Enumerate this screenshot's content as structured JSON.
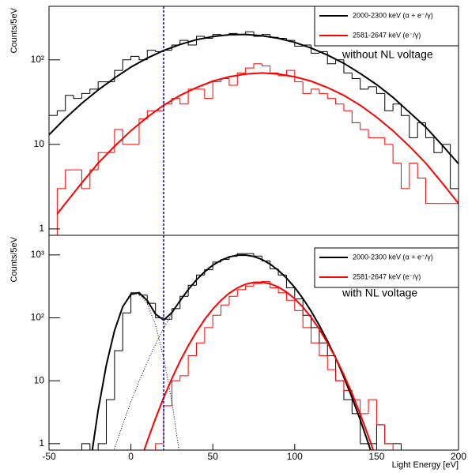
{
  "chart_data": [
    {
      "type": "histogram",
      "scale": "log",
      "ylabel": "Counts/5eV",
      "annotation": "without NL voltage",
      "legend": "top-right",
      "xlim": [
        -50,
        200
      ],
      "ylim": [
        0.84,
        430
      ],
      "yticks": [
        1,
        10,
        {
          "value": 100,
          "label": "10²"
        }
      ],
      "vline": {
        "x": 20,
        "color": "#0000cc"
      },
      "bins": [
        -50,
        -45,
        -40,
        -35,
        -30,
        -25,
        -20,
        -15,
        -10,
        -5,
        0,
        5,
        10,
        15,
        20,
        25,
        30,
        35,
        40,
        45,
        50,
        55,
        60,
        65,
        70,
        75,
        80,
        85,
        90,
        95,
        100,
        105,
        110,
        115,
        120,
        125,
        130,
        135,
        140,
        145,
        150,
        155,
        160,
        165,
        170,
        175,
        180,
        185,
        190,
        195,
        200
      ],
      "series": [
        {
          "name": "2000-2300 keV (α + e⁻/γ)",
          "color": "#000000",
          "values": [
            22,
            25,
            38,
            35,
            40,
            45,
            55,
            55,
            75,
            100,
            110,
            100,
            130,
            125,
            130,
            150,
            170,
            150,
            190,
            180,
            200,
            195,
            205,
            200,
            215,
            190,
            200,
            185,
            180,
            170,
            145,
            150,
            120,
            125,
            90,
            100,
            70,
            60,
            45,
            48,
            40,
            25,
            30,
            22,
            12,
            18,
            12,
            8,
            10,
            3
          ]
        },
        {
          "name": "2581-2647 keV (e⁻/γ)",
          "color": "#ff0000",
          "values": [
            0,
            3,
            5,
            5,
            3,
            5,
            8,
            8,
            15,
            10,
            10,
            20,
            25,
            25,
            30,
            35,
            30,
            45,
            45,
            35,
            55,
            60,
            50,
            70,
            80,
            90,
            85,
            70,
            65,
            75,
            55,
            40,
            45,
            40,
            35,
            30,
            25,
            18,
            15,
            12,
            12,
            10,
            6,
            3,
            6,
            4,
            2,
            2,
            2,
            2
          ]
        }
      ],
      "fits": [
        {
          "color": "#000000",
          "dashed": false,
          "x": [
            -50,
            -40,
            -30,
            -20,
            -10,
            0,
            10,
            20,
            30,
            40,
            50,
            60,
            70,
            80,
            90,
            100,
            110,
            120,
            130,
            140,
            150,
            160,
            170,
            180,
            190,
            200
          ],
          "values": [
            13,
            20.4,
            30.6,
            44,
            61,
            82,
            105,
            129,
            152,
            173,
            189,
            198,
            200,
            193,
            180,
            161,
            138,
            114,
            91,
            69,
            51,
            36,
            24,
            16,
            9.8,
            5.9
          ]
        },
        {
          "color": "#ff0000",
          "dashed": false,
          "x": [
            -45,
            -40,
            -30,
            -20,
            -10,
            0,
            10,
            20,
            30,
            40,
            50,
            60,
            70,
            80,
            90,
            100,
            110,
            120,
            130,
            140,
            150,
            160,
            170,
            180,
            190,
            200
          ],
          "values": [
            1.5,
            2.0,
            3.5,
            6.0,
            9.5,
            14.5,
            21,
            29,
            38,
            47,
            56,
            63,
            68,
            70,
            68,
            63,
            56,
            47,
            38,
            29,
            21,
            14.5,
            9.5,
            6.0,
            3.5,
            2.0
          ]
        }
      ]
    },
    {
      "type": "histogram",
      "scale": "log",
      "ylabel": "Counts/5eV",
      "xlabel": "Light Energy [eV]",
      "annotation": "with NL voltage",
      "legend": "top-right",
      "xlim": [
        -50,
        200
      ],
      "ylim": [
        0.79,
        2050
      ],
      "xticks": [
        -50,
        0,
        50,
        100,
        150,
        200
      ],
      "yticks": [
        1,
        10,
        {
          "value": 100,
          "label": "10²"
        },
        {
          "value": 1000,
          "label": "10³"
        }
      ],
      "vline": {
        "x": 20,
        "color": "#0000cc"
      },
      "bins": [
        -50,
        -45,
        -40,
        -35,
        -30,
        -25,
        -20,
        -15,
        -10,
        -5,
        0,
        5,
        10,
        15,
        20,
        25,
        30,
        35,
        40,
        45,
        50,
        55,
        60,
        65,
        70,
        75,
        80,
        85,
        90,
        95,
        100,
        105,
        110,
        115,
        120,
        125,
        130,
        135,
        140,
        145,
        150,
        155,
        160,
        165,
        170,
        175,
        180,
        185,
        190,
        195,
        200
      ],
      "series": [
        {
          "name": "2000-2300 keV (α + e⁻/γ)",
          "color": "#000000",
          "values": [
            0,
            0,
            0,
            0,
            1,
            0,
            1,
            5,
            30,
            120,
            250,
            230,
            170,
            100,
            95,
            140,
            220,
            330,
            480,
            580,
            770,
            850,
            950,
            1050,
            1050,
            960,
            800,
            600,
            480,
            300,
            200,
            110,
            70,
            40,
            25,
            10,
            5,
            3,
            1,
            1,
            2,
            1,
            1,
            0,
            0,
            0,
            0,
            0,
            0,
            0
          ]
        },
        {
          "name": "2581-2647 keV (e⁻/γ)",
          "color": "#ff0000",
          "values": [
            0,
            0,
            0,
            0,
            0,
            0,
            0,
            0,
            0,
            0,
            0,
            0,
            0,
            1,
            4,
            10,
            12,
            25,
            40,
            70,
            110,
            160,
            220,
            280,
            320,
            350,
            380,
            300,
            250,
            190,
            130,
            70,
            40,
            25,
            15,
            10,
            7,
            5,
            3,
            5,
            2,
            1,
            0,
            0,
            0,
            0,
            0,
            0,
            0,
            0
          ]
        }
      ],
      "fits": [
        {
          "color": "#000000",
          "dashed": false,
          "x": [
            -25,
            -20,
            -15,
            -10,
            -5,
            0,
            5,
            10,
            15,
            20,
            25,
            30,
            35,
            40,
            45,
            50,
            55,
            60,
            65,
            70,
            75,
            80,
            85,
            90,
            95,
            100,
            105,
            110,
            115,
            120,
            125,
            130,
            135,
            140,
            145,
            150
          ],
          "values": [
            0.44,
            3.4,
            17.8,
            63,
            150,
            237,
            252,
            188,
            115,
            92,
            121,
            187,
            281,
            401,
            540,
            686,
            821,
            928,
            990,
            995,
            945,
            846,
            714,
            569,
            428,
            304,
            203,
            128,
            76,
            43,
            23,
            11.4,
            5.4,
            2.4,
            1.0,
            0.4
          ]
        },
        {
          "color": "#000000",
          "dashed": true,
          "x": [
            -25,
            -20,
            -15,
            -10,
            -5,
            0,
            5,
            10,
            15,
            20,
            25,
            30
          ],
          "values": [
            0.4,
            3.25,
            17.5,
            62.6,
            148,
            232,
            242,
            168,
            77,
            23,
            4.7,
            0.6
          ]
        },
        {
          "color": "#000000",
          "dashed": true,
          "x": [
            -15,
            -10,
            -5,
            0,
            5,
            10,
            15,
            20,
            25
          ],
          "values": [
            0.33,
            0.84,
            2.0,
            4.6,
            9.8,
            19.9,
            38,
            68.5,
            116
          ]
        },
        {
          "color": "#ff0000",
          "dashed": false,
          "x": [
            5,
            10,
            15,
            20,
            25,
            30,
            35,
            40,
            45,
            50,
            55,
            60,
            65,
            70,
            75,
            80,
            85,
            90,
            95,
            100,
            105,
            110,
            115,
            120,
            125,
            130,
            135,
            140,
            145,
            150
          ],
          "values": [
            0.46,
            1.1,
            2.5,
            5.4,
            10.8,
            20.5,
            36,
            60,
            94,
            138,
            190,
            246,
            299,
            342,
            366,
            368,
            348,
            309,
            257,
            201,
            148,
            102,
            66,
            40,
            23,
            12.4,
            6.3,
            2.95,
            1.3,
            0.55
          ]
        }
      ]
    }
  ]
}
